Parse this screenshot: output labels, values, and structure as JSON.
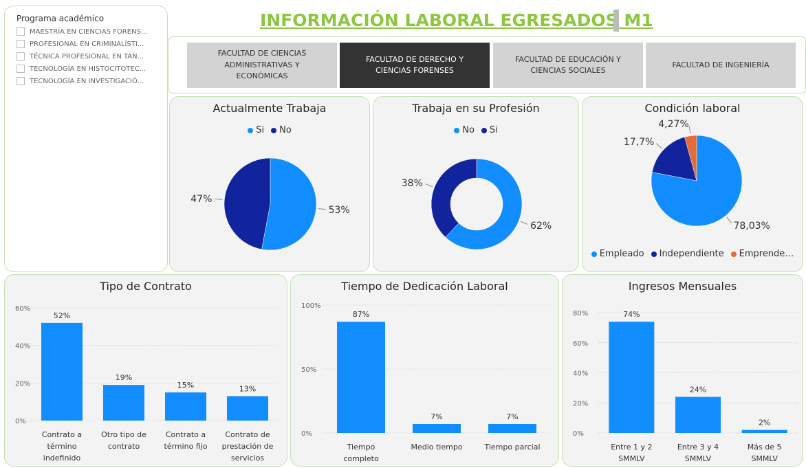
{
  "title": "INFORMACIÓN LABORAL EGRESADOS  M1",
  "slicer": {
    "title": "Programa académico",
    "items": [
      "MAESTRÍA EN CIENCIAS FORENS...",
      "PROFESIONAL EN CRIMINALÍSTI...",
      "TÉCNICA PROFESIONAL EN TAN...",
      "TECNOLOGÍA EN HISTOCITOTEC...",
      "TECNOLOGÍA EN INVESTIGACIÓ..."
    ]
  },
  "tabs": [
    "FACULTAD DE CIENCIAS ADMINISTRATIVAS Y ECONÓMICAS",
    "FACULTAD DE DERECHO Y CIENCIAS FORENSES",
    "FACULTAD DE EDUCACIÓN Y CIENCIAS SOCIALES",
    "FACULTAD DE INGENIERÍA"
  ],
  "chart_data": [
    {
      "type": "pie",
      "title": "Actualmente Trabaja",
      "categories": [
        "Si",
        "No"
      ],
      "values": [
        53,
        47
      ],
      "value_labels": [
        "53%",
        "47%"
      ],
      "colors": [
        "#118dff",
        "#12239e"
      ]
    },
    {
      "type": "donut",
      "title": "Trabaja en su Profesión",
      "categories": [
        "No",
        "Si"
      ],
      "values": [
        62,
        38
      ],
      "value_labels": [
        "62%",
        "38%"
      ],
      "colors": [
        "#118dff",
        "#12239e"
      ]
    },
    {
      "type": "pie",
      "title": "Condición laboral",
      "categories": [
        "Empleado",
        "Independiente",
        "Emprende…"
      ],
      "values": [
        78.03,
        17.7,
        4.27
      ],
      "value_labels": [
        "78,03%",
        "17,7%",
        "4,27%"
      ],
      "colors": [
        "#118dff",
        "#12239e",
        "#e66c37"
      ]
    },
    {
      "type": "bar",
      "title": "Tipo de Contrato",
      "categories": [
        "Contrato a término indefinido",
        "Otro tipo de contrato",
        "Contrato a término fijo",
        "Contrato de prestación de servicios"
      ],
      "values": [
        52,
        19,
        15,
        13
      ],
      "value_labels": [
        "52%",
        "19%",
        "15%",
        "13%"
      ],
      "color": "#118dff",
      "ylim": [
        0,
        60
      ],
      "yticks": [
        {
          "value": 0,
          "label": "0%"
        },
        {
          "value": 20,
          "label": "20%"
        },
        {
          "value": 40,
          "label": "40%"
        },
        {
          "value": 60,
          "label": "60%"
        }
      ],
      "grid": true
    },
    {
      "type": "bar",
      "title": "Tiempo de Dedicación Laboral",
      "categories": [
        "Tiempo completo",
        "Medio tiempo",
        "Tiempo parcial"
      ],
      "values": [
        87,
        7,
        7
      ],
      "value_labels": [
        "87%",
        "7%",
        "7%"
      ],
      "color": "#118dff",
      "ylim": [
        0,
        100
      ],
      "yticks": [
        {
          "value": 0,
          "label": "0%"
        },
        {
          "value": 50,
          "label": "50%"
        },
        {
          "value": 100,
          "label": "100%"
        }
      ],
      "grid": true
    },
    {
      "type": "bar",
      "title": "Ingresos Mensuales",
      "categories": [
        "Entre 1 y 2 SMMLV",
        "Entre 3 y 4 SMMLV",
        "Más de 5 SMMLV"
      ],
      "values": [
        74,
        24,
        2
      ],
      "value_labels": [
        "74%",
        "24%",
        "2%"
      ],
      "color": "#118dff",
      "ylim": [
        0,
        80
      ],
      "yticks": [
        {
          "value": 0,
          "label": "0%"
        },
        {
          "value": 20,
          "label": "20%"
        },
        {
          "value": 40,
          "label": "40%"
        },
        {
          "value": 60,
          "label": "60%"
        },
        {
          "value": 80,
          "label": "80%"
        }
      ],
      "grid": true
    }
  ]
}
